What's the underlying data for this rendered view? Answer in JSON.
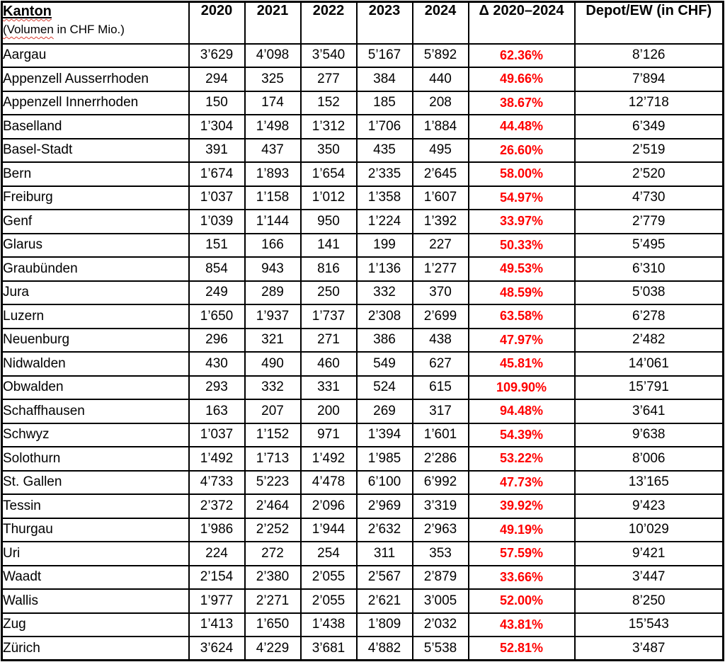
{
  "table": {
    "header": {
      "kanton_label": "Kanton",
      "kanton_subtitle_flagged": "(Volumen",
      "kanton_subtitle_rest": " in CHF Mio.)",
      "years": [
        "2020",
        "2021",
        "2022",
        "2023",
        "2024"
      ],
      "delta_label": "Δ 2020–2024",
      "depot_label": "Depot/EW (in CHF)"
    },
    "colors": {
      "delta_text": "#FF0000",
      "spellcheck_underline": "#D83B2F",
      "border": "#000000",
      "text": "#000000",
      "background": "#FFFFFF"
    },
    "rows": [
      {
        "kanton": "Aargau",
        "values": [
          "3’629",
          "4’098",
          "3’540",
          "5’167",
          "5’892"
        ],
        "delta": "62.36%",
        "depot": "8’126"
      },
      {
        "kanton": "Appenzell Ausserrhoden",
        "values": [
          "294",
          "325",
          "277",
          "384",
          "440"
        ],
        "delta": "49.66%",
        "depot": "7’894"
      },
      {
        "kanton": "Appenzell Innerrhoden",
        "values": [
          "150",
          "174",
          "152",
          "185",
          "208"
        ],
        "delta": "38.67%",
        "depot": "12’718"
      },
      {
        "kanton": "Baselland",
        "values": [
          "1’304",
          "1’498",
          "1’312",
          "1’706",
          "1’884"
        ],
        "delta": "44.48%",
        "depot": "6’349"
      },
      {
        "kanton": "Basel-Stadt",
        "values": [
          "391",
          "437",
          "350",
          "435",
          "495"
        ],
        "delta": "26.60%",
        "depot": "2’519"
      },
      {
        "kanton": "Bern",
        "values": [
          "1’674",
          "1’893",
          "1’654",
          "2’335",
          "2’645"
        ],
        "delta": "58.00%",
        "depot": "2’520"
      },
      {
        "kanton": "Freiburg",
        "values": [
          "1’037",
          "1’158",
          "1’012",
          "1’358",
          "1’607"
        ],
        "delta": "54.97%",
        "depot": "4’730"
      },
      {
        "kanton": "Genf",
        "values": [
          "1’039",
          "1’144",
          "950",
          "1’224",
          "1’392"
        ],
        "delta": "33.97%",
        "depot": "2’779"
      },
      {
        "kanton": "Glarus",
        "values": [
          "151",
          "166",
          "141",
          "199",
          "227"
        ],
        "delta": "50.33%",
        "depot": "5’495"
      },
      {
        "kanton": "Graubünden",
        "values": [
          "854",
          "943",
          "816",
          "1’136",
          "1’277"
        ],
        "delta": "49.53%",
        "depot": "6’310"
      },
      {
        "kanton": "Jura",
        "values": [
          "249",
          "289",
          "250",
          "332",
          "370"
        ],
        "delta": "48.59%",
        "depot": "5’038"
      },
      {
        "kanton": "Luzern",
        "values": [
          "1’650",
          "1’937",
          "1’737",
          "2’308",
          "2’699"
        ],
        "delta": "63.58%",
        "depot": "6’278"
      },
      {
        "kanton": "Neuenburg",
        "values": [
          "296",
          "321",
          "271",
          "386",
          "438"
        ],
        "delta": "47.97%",
        "depot": "2’482"
      },
      {
        "kanton": "Nidwalden",
        "values": [
          "430",
          "490",
          "460",
          "549",
          "627"
        ],
        "delta": "45.81%",
        "depot": "14’061"
      },
      {
        "kanton": "Obwalden",
        "values": [
          "293",
          "332",
          "331",
          "524",
          "615"
        ],
        "delta": "109.90%",
        "depot": "15’791"
      },
      {
        "kanton": "Schaffhausen",
        "values": [
          "163",
          "207",
          "200",
          "269",
          "317"
        ],
        "delta": "94.48%",
        "depot": "3’641"
      },
      {
        "kanton": "Schwyz",
        "values": [
          "1’037",
          "1’152",
          "971",
          "1’394",
          "1’601"
        ],
        "delta": "54.39%",
        "depot": "9’638"
      },
      {
        "kanton": "Solothurn",
        "values": [
          "1’492",
          "1’713",
          "1’492",
          "1’985",
          "2’286"
        ],
        "delta": "53.22%",
        "depot": "8’006"
      },
      {
        "kanton": "St. Gallen",
        "values": [
          "4’733",
          "5’223",
          "4’478",
          "6’100",
          "6’992"
        ],
        "delta": "47.73%",
        "depot": "13’165"
      },
      {
        "kanton": "Tessin",
        "values": [
          "2’372",
          "2’464",
          "2’096",
          "2’969",
          "3’319"
        ],
        "delta": "39.92%",
        "depot": "9’423"
      },
      {
        "kanton": "Thurgau",
        "values": [
          "1’986",
          "2’252",
          "1’944",
          "2’632",
          "2’963"
        ],
        "delta": "49.19%",
        "depot": "10’029"
      },
      {
        "kanton": "Uri",
        "values": [
          "224",
          "272",
          "254",
          "311",
          "353"
        ],
        "delta": "57.59%",
        "depot": "9’421"
      },
      {
        "kanton": "Waadt",
        "values": [
          "2’154",
          "2’380",
          "2’055",
          "2’567",
          "2’879"
        ],
        "delta": "33.66%",
        "depot": "3’447"
      },
      {
        "kanton": "Wallis",
        "values": [
          "1’977",
          "2’271",
          "2’055",
          "2’621",
          "3’005"
        ],
        "delta": "52.00%",
        "depot": "8’250"
      },
      {
        "kanton": "Zug",
        "values": [
          "1’413",
          "1’650",
          "1’438",
          "1’809",
          "2’032"
        ],
        "delta": "43.81%",
        "depot": "15’543"
      },
      {
        "kanton": "Zürich",
        "values": [
          "3’624",
          "4’229",
          "3’681",
          "4’882",
          "5’538"
        ],
        "delta": "52.81%",
        "depot": "3’487"
      }
    ]
  }
}
